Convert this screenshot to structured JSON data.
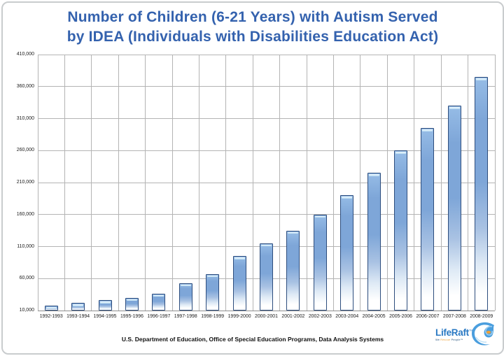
{
  "title": {
    "line1": "Number of Children (6-21 Years) with Autism Served",
    "line2": "by IDEA (Individuals with Disabilities Education Act)"
  },
  "chart_data": {
    "type": "bar",
    "title": "Number of Children (6-21 Years) with Autism Served by IDEA (Individuals with Disabilities Education Act)",
    "categories": [
      "1992-1993",
      "1993-1994",
      "1994-1995",
      "1995-1996",
      "1996-1997",
      "1997-1998",
      "1998-1999",
      "1999-2000",
      "2000-2001",
      "2001-2002",
      "2002-2003",
      "2003-2004",
      "2004-2005",
      "2005-2006",
      "2006-2007",
      "2007-2008",
      "2008-2009"
    ],
    "values": [
      18000,
      22000,
      26000,
      30000,
      36500,
      53000,
      67000,
      95000,
      115000,
      135000,
      160000,
      190000,
      225000,
      260000,
      295000,
      330000,
      375000
    ],
    "xlabel": "",
    "ylabel": "",
    "ylim": [
      10000,
      410000
    ],
    "ytick_interval": 50000,
    "ytick_labels": [
      "410,000",
      "360,000",
      "310,000",
      "260,000",
      "210,000",
      "160,000",
      "110,000",
      "60,000",
      "10,000"
    ],
    "grid": "both",
    "legend": "none",
    "bar_fill_color": "#7ea6d8",
    "bar_border_color": "#2d4d7d",
    "gridline_color": "#b4b4b4",
    "title_color": "#3462ae"
  },
  "footer": {
    "source": "U.S. Department of Education, Office of Special Education Programs, Data Analysis Systems"
  },
  "logo": {
    "name": "LifeRaft",
    "trademark": "TM",
    "tagline_prefix": "We ",
    "tagline_accent": "Rescue",
    "tagline_suffix": " People™",
    "brand_blue": "#2a79c3",
    "brand_orange": "#eda03a"
  }
}
